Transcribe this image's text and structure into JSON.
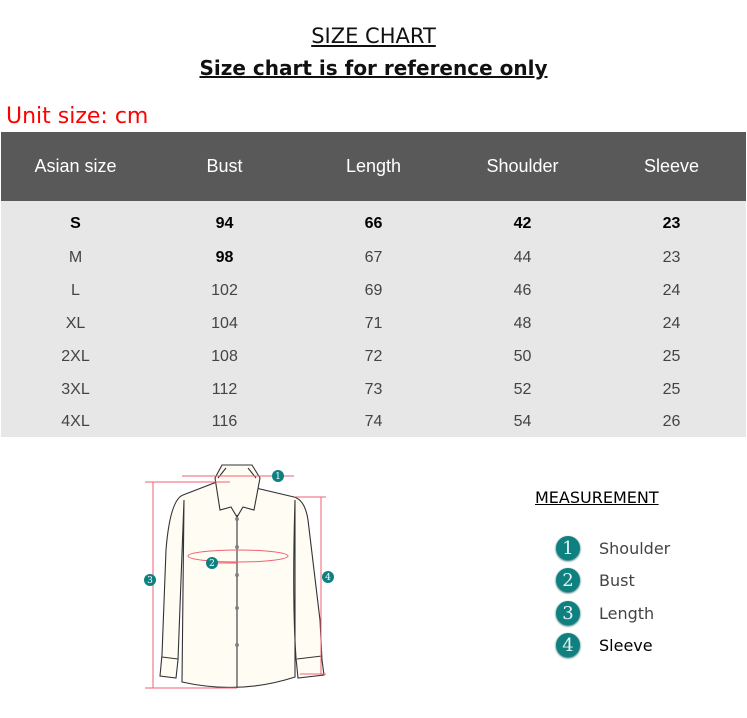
{
  "title": "SIZE CHART",
  "subtitle": "Size chart is for reference only",
  "unit": "Unit size: cm",
  "table": {
    "headers": [
      "Asian size",
      "Bust",
      "Length",
      "Shoulder",
      "Sleeve"
    ],
    "rows": [
      [
        "S",
        "94",
        "66",
        "42",
        "23"
      ],
      [
        "M",
        "98",
        "67",
        "44",
        "23"
      ],
      [
        "L",
        "102",
        "69",
        "46",
        "24"
      ],
      [
        "XL",
        "104",
        "71",
        "48",
        "24"
      ],
      [
        "2XL",
        "108",
        "72",
        "50",
        "25"
      ],
      [
        "3XL",
        "112",
        "73",
        "52",
        "25"
      ],
      [
        "4XL",
        "116",
        "74",
        "54",
        "26"
      ]
    ]
  },
  "measurement": {
    "heading": "MEASUREMENT",
    "items": [
      {
        "num": "1",
        "label": "Shoulder"
      },
      {
        "num": "2",
        "label": "Bust"
      },
      {
        "num": "3",
        "label": "Length"
      },
      {
        "num": "4",
        "label": "Sleeve"
      }
    ]
  },
  "colors": {
    "header_bg": "#595959",
    "body_bg": "#e7e7e7",
    "unit": "#ff0000",
    "badge": "#0e8080",
    "measure_line": "#f06070"
  }
}
